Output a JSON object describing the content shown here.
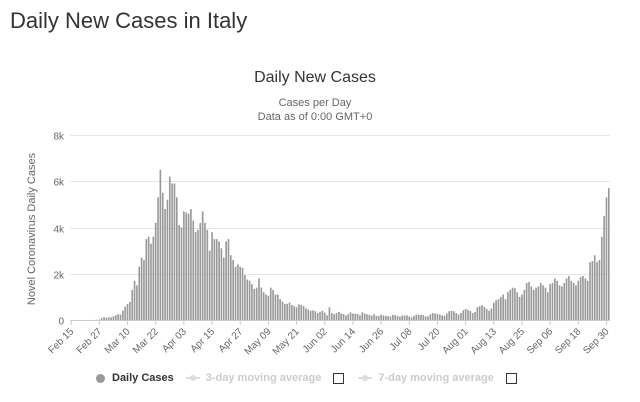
{
  "page": {
    "title": "Daily New Cases in Italy"
  },
  "legend": {
    "daily": "Daily Cases",
    "avg3": "3-day moving average",
    "avg7": "7-day moving average"
  },
  "colors": {
    "bar": "#999999",
    "grid": "#e6e6e6",
    "text": "#333333",
    "axis_text": "#666666"
  },
  "chart_data": {
    "type": "bar",
    "title": "Daily New Cases",
    "subtitle": [
      "Cases per Day",
      "Data as of 0:00 GMT+0"
    ],
    "xlabel": "",
    "ylabel": "Novel Coronavirus Daily Cases",
    "ylim": [
      0,
      8000
    ],
    "yticks": [
      0,
      2000,
      4000,
      6000,
      8000
    ],
    "ytick_labels": [
      "0",
      "2k",
      "4k",
      "6k",
      "8k"
    ],
    "xtick_labels": [
      "Feb 15",
      "Feb 27",
      "Mar 10",
      "Mar 22",
      "Apr 03",
      "Apr 15",
      "Apr 27",
      "May 09",
      "May 21",
      "Jun 02",
      "Jun 14",
      "Jun 26",
      "Jul 08",
      "Jul 20",
      "Aug 01",
      "Aug 13",
      "Aug 25",
      "Sep 06",
      "Sep 18",
      "Sep 30"
    ],
    "xtick_indices": [
      0,
      12,
      24,
      36,
      48,
      60,
      72,
      84,
      96,
      108,
      120,
      132,
      144,
      156,
      168,
      180,
      192,
      204,
      216,
      228
    ],
    "values": [
      0,
      0,
      0,
      0,
      0,
      0,
      0,
      0,
      1,
      2,
      3,
      8,
      20,
      78,
      118,
      100,
      116,
      115,
      160,
      200,
      250,
      238,
      400,
      577,
      690,
      780,
      1300,
      1700,
      1500,
      2300,
      2700,
      2600,
      3500,
      3600,
      3300,
      3600,
      4200,
      5300,
      6500,
      5500,
      4800,
      5200,
      6200,
      5900,
      5900,
      5300,
      4100,
      4000,
      4700,
      4650,
      4600,
      4800,
      4300,
      3800,
      3900,
      4200,
      4700,
      4200,
      3900,
      3000,
      3800,
      3500,
      3500,
      3400,
      3100,
      2700,
      3400,
      3500,
      2800,
      2600,
      2300,
      2400,
      2300,
      2250,
      1950,
      1750,
      1700,
      1550,
      1350,
      1400,
      1800,
      1400,
      1200,
      1100,
      1050,
      1400,
      1300,
      1100,
      1100,
      900,
      800,
      700,
      700,
      750,
      650,
      600,
      550,
      680,
      650,
      600,
      500,
      450,
      400,
      420,
      380,
      300,
      350,
      400,
      320,
      200,
      550,
      300,
      250,
      300,
      350,
      280,
      260,
      200,
      250,
      330,
      280,
      270,
      260,
      200,
      330,
      280,
      250,
      220,
      190,
      250,
      180,
      170,
      230,
      200,
      180,
      170,
      150,
      220,
      210,
      180,
      140,
      190,
      200,
      200,
      150,
      110,
      180,
      230,
      230,
      220,
      210,
      150,
      160,
      250,
      300,
      280,
      270,
      240,
      200,
      180,
      280,
      380,
      400,
      380,
      300,
      240,
      300,
      420,
      480,
      440,
      400,
      300,
      350,
      550,
      600,
      640,
      570,
      480,
      400,
      500,
      750,
      850,
      900,
      1000,
      1100,
      900,
      1200,
      1300,
      1400,
      1380,
      1200,
      1000,
      1100,
      1300,
      1600,
      1650,
      1450,
      1300,
      1400,
      1450,
      1600,
      1500,
      1400,
      1200,
      1550,
      1600,
      1800,
      1700,
      1500,
      1450,
      1600,
      1800,
      1900,
      1700,
      1600,
      1500,
      1700,
      1850,
      1900,
      1800,
      1700,
      2500,
      2550,
      2800,
      2500,
      2600,
      3600,
      4500,
      5300,
      5700
    ]
  }
}
